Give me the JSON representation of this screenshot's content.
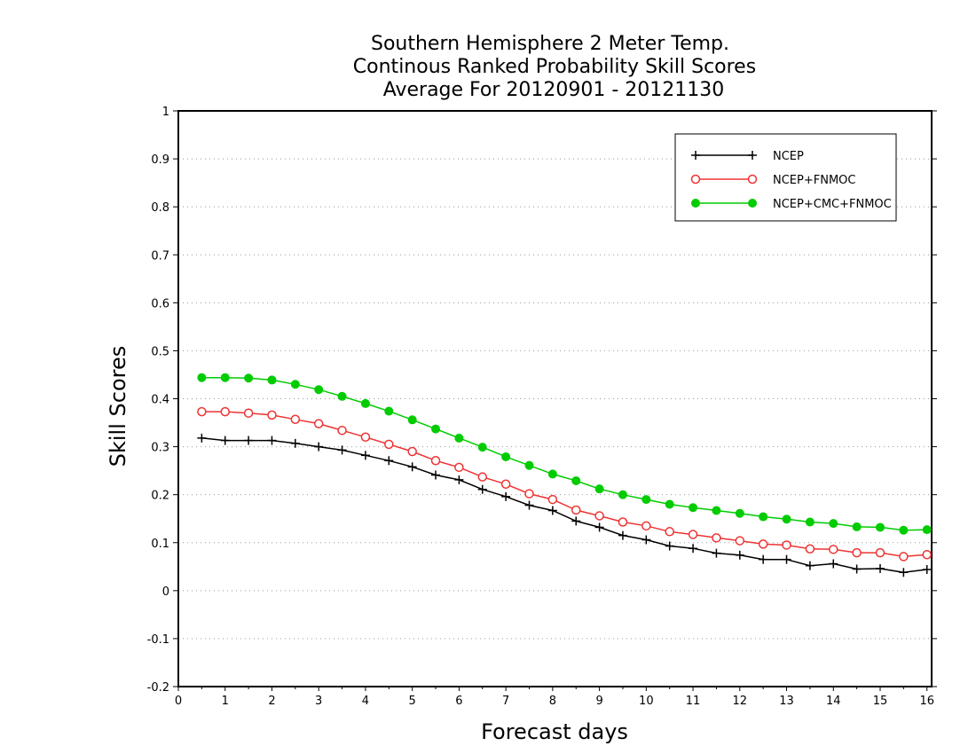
{
  "chart_data": {
    "type": "line",
    "title_lines": [
      "Southern Hemisphere 2 Meter Temp.",
      "Continous Ranked Probability Skill Scores",
      "Average For 20120901 - 20121130"
    ],
    "xlabel": "Forecast days",
    "ylabel": "Skill Scores",
    "xlim": [
      0,
      16.1
    ],
    "ylim": [
      -0.2,
      1
    ],
    "x_ticks": [
      "0",
      "1",
      "2",
      "3",
      "4",
      "5",
      "6",
      "7",
      "8",
      "9",
      "10",
      "11",
      "12",
      "13",
      "14",
      "15",
      "16"
    ],
    "y_ticks": [
      "-0.2",
      "-0.1",
      "0",
      "0.1",
      "0.2",
      "0.3",
      "0.4",
      "0.5",
      "0.6",
      "0.7",
      "0.8",
      "0.9",
      "1"
    ],
    "grid": "horizontal dotted",
    "legend_position": "top-right",
    "x": [
      0.5,
      1,
      1.5,
      2,
      2.5,
      3,
      3.5,
      4,
      4.5,
      5,
      5.5,
      6,
      6.5,
      7,
      7.5,
      8,
      8.5,
      9,
      9.5,
      10,
      10.5,
      11,
      11.5,
      12,
      12.5,
      13,
      13.5,
      14,
      14.5,
      15,
      15.5,
      16
    ],
    "series": [
      {
        "name": "NCEP",
        "color": "#000000",
        "marker": "plus",
        "values": [
          0.318,
          0.313,
          0.313,
          0.313,
          0.307,
          0.3,
          0.293,
          0.282,
          0.271,
          0.258,
          0.241,
          0.231,
          0.211,
          0.196,
          0.178,
          0.167,
          0.145,
          0.132,
          0.115,
          0.106,
          0.093,
          0.088,
          0.078,
          0.074,
          0.065,
          0.065,
          0.052,
          0.056,
          0.045,
          0.046,
          0.038,
          0.044
        ]
      },
      {
        "name": "NCEP+FNMOC",
        "color": "#ee3333",
        "marker": "open-circle",
        "values": [
          0.373,
          0.373,
          0.37,
          0.366,
          0.357,
          0.348,
          0.334,
          0.32,
          0.305,
          0.29,
          0.271,
          0.257,
          0.237,
          0.222,
          0.202,
          0.19,
          0.168,
          0.156,
          0.143,
          0.135,
          0.123,
          0.117,
          0.11,
          0.104,
          0.097,
          0.095,
          0.087,
          0.086,
          0.079,
          0.079,
          0.071,
          0.075
        ]
      },
      {
        "name": "NCEP+CMC+FNMOC",
        "color": "#00cc00",
        "marker": "filled-circle",
        "values": [
          0.444,
          0.444,
          0.443,
          0.439,
          0.43,
          0.419,
          0.405,
          0.39,
          0.374,
          0.356,
          0.337,
          0.318,
          0.299,
          0.279,
          0.261,
          0.243,
          0.229,
          0.212,
          0.2,
          0.19,
          0.18,
          0.173,
          0.167,
          0.161,
          0.154,
          0.149,
          0.143,
          0.14,
          0.133,
          0.132,
          0.126,
          0.127
        ]
      }
    ]
  }
}
